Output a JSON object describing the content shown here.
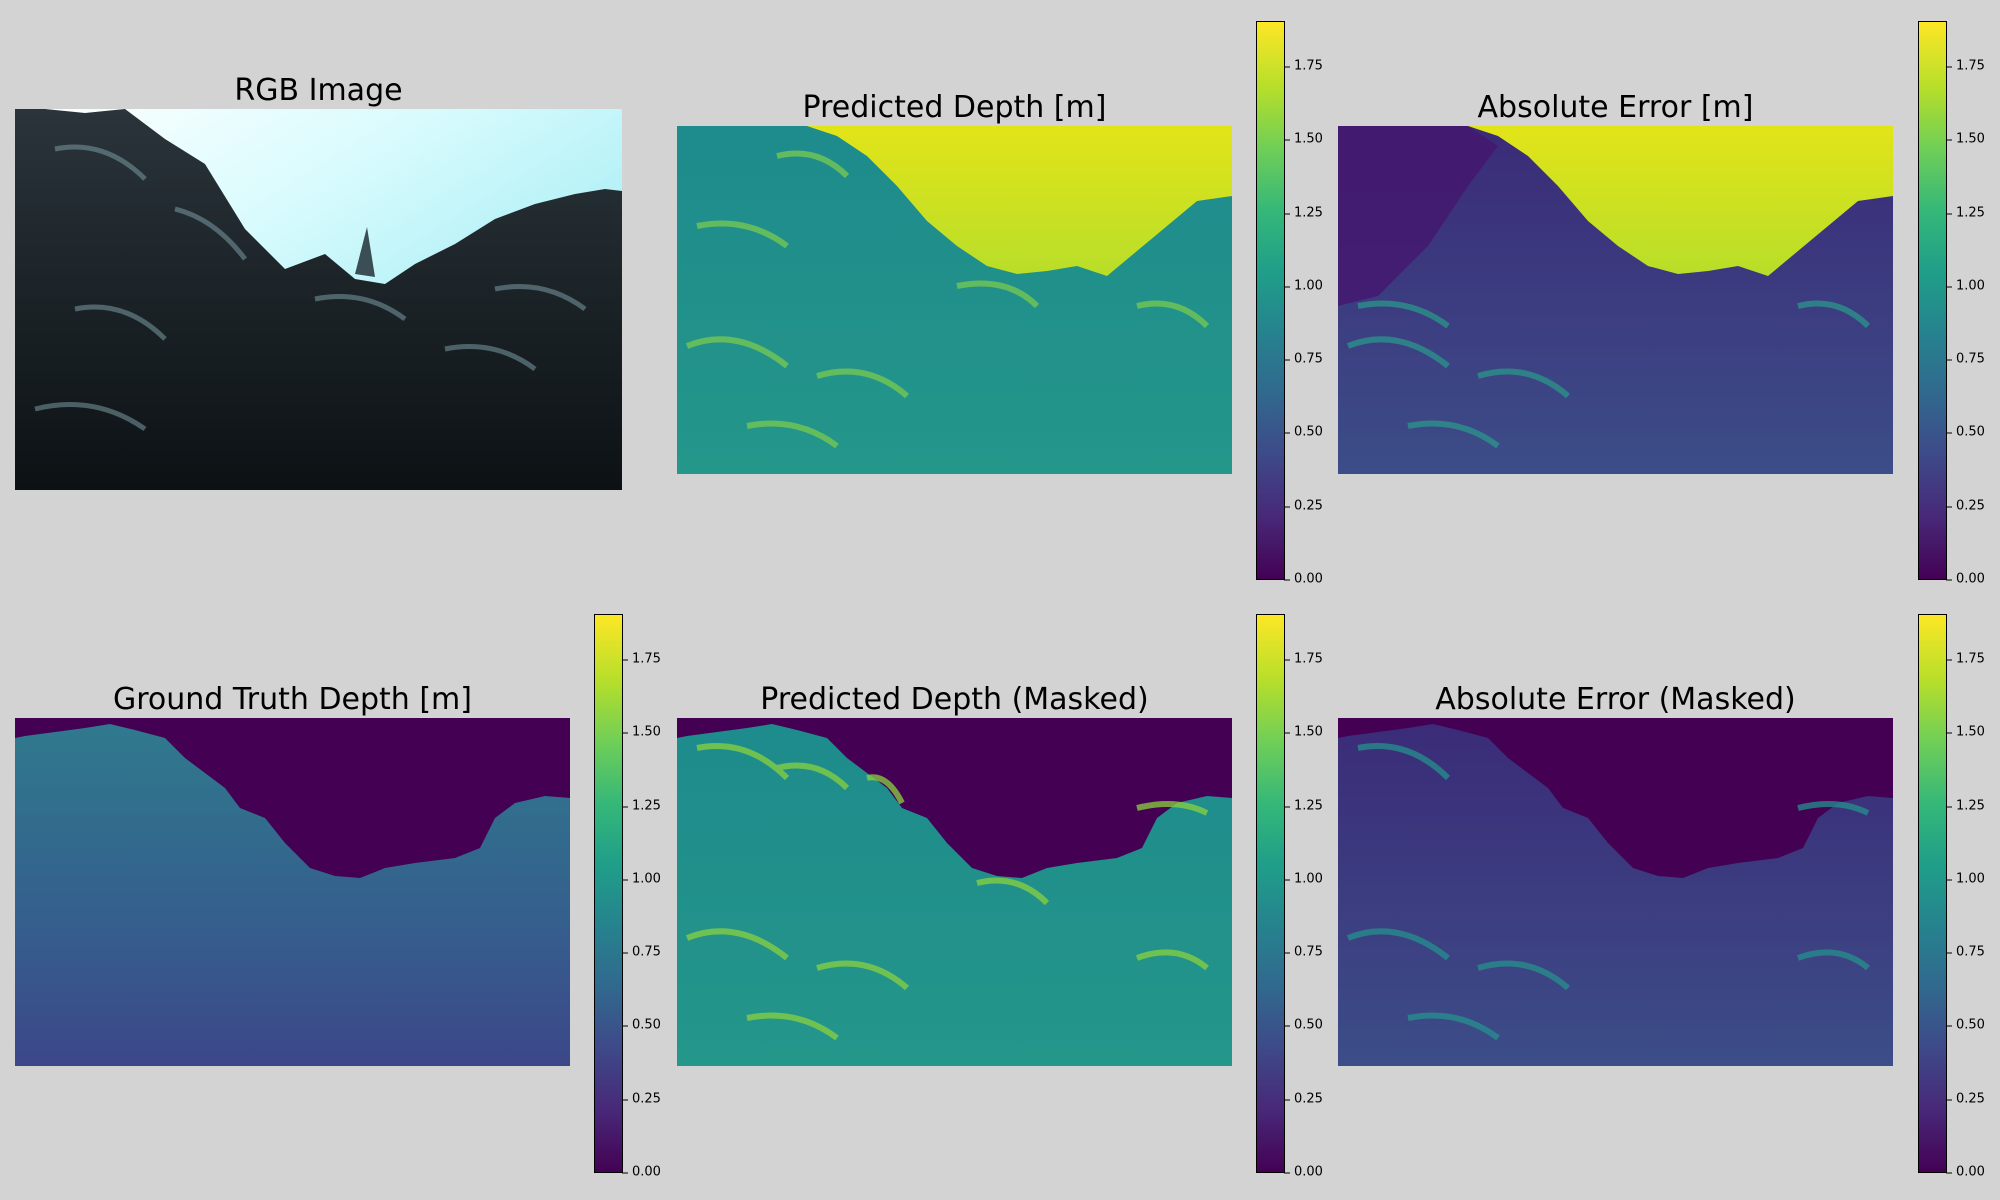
{
  "panels": {
    "rgb": {
      "title": "RGB Image"
    },
    "pred": {
      "title": "Predicted Depth [m]"
    },
    "err": {
      "title": "Absolute Error [m]"
    },
    "gt": {
      "title": "Ground Truth Depth [m]"
    },
    "pred_masked": {
      "title": "Predicted Depth (Masked)"
    },
    "err_masked": {
      "title": "Absolute Error (Masked)"
    }
  },
  "colorbar": {
    "colormap": "viridis",
    "range": [
      0,
      1.9
    ],
    "tick_values": [
      0,
      0.25,
      0.5,
      0.75,
      1.0,
      1.25,
      1.5,
      1.75
    ],
    "tick_labels": [
      "0.00",
      "0.25",
      "0.50",
      "0.75",
      "1.00",
      "1.25",
      "1.50",
      "1.75"
    ]
  },
  "colors": {
    "background": "#d3d3d3",
    "water": "#9ef0f5",
    "rock": "#1b2329",
    "viridis_low": "#440154",
    "viridis_mid": "#21918c",
    "viridis_high": "#fde725"
  }
}
